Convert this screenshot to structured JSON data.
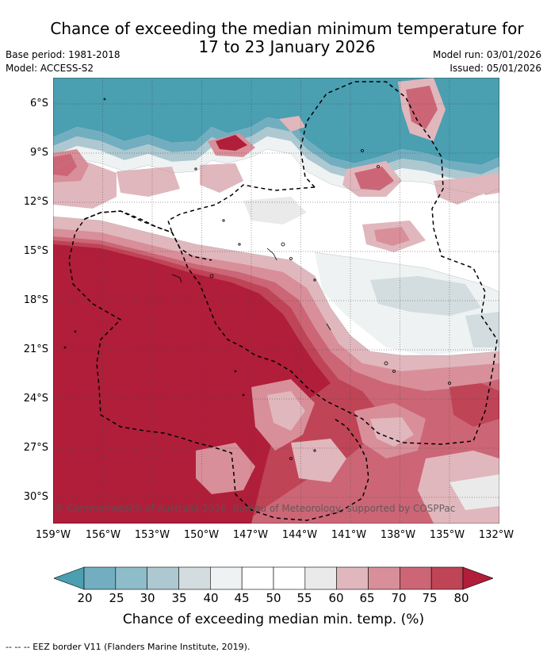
{
  "title": {
    "line1": "Chance of exceeding the median minimum temperature for",
    "line2": "17 to 23 January 2026"
  },
  "meta": {
    "base_period": "Base period: 1981-2018",
    "model": "Model: ACCESS-S2",
    "model_run": "Model run: 03/01/2026",
    "issued": "Issued: 05/01/2026"
  },
  "map": {
    "copyright": "© Commonwealth of Australia 2026, Bureau of Meteorology, supported by COSPPac",
    "lat_labels": [
      "6°S",
      "9°S",
      "12°S",
      "15°S",
      "18°S",
      "21°S",
      "24°S",
      "27°S",
      "30°S"
    ],
    "lon_labels": [
      "159°W",
      "156°W",
      "153°W",
      "150°W",
      "147°W",
      "144°W",
      "141°W",
      "138°W",
      "135°W",
      "132°W"
    ]
  },
  "colorbar": {
    "ticks": [
      "20",
      "25",
      "30",
      "35",
      "40",
      "45",
      "50",
      "55",
      "60",
      "65",
      "70",
      "75",
      "80"
    ],
    "colors": [
      "#4a9fb1",
      "#72aebf",
      "#8ebcc8",
      "#adc8d0",
      "#d3dcdf",
      "#eef2f3",
      "#ffffff",
      "#ffffff",
      "#eaeaea",
      "#e0b7bd",
      "#d88f99",
      "#cc6676",
      "#bf4456",
      "#b01e3a"
    ],
    "label": "Chance of exceeding median min. temp. (%)"
  },
  "footer": "--  --  -- EEZ border V11 (Flanders Marine Institute, 2019)."
}
